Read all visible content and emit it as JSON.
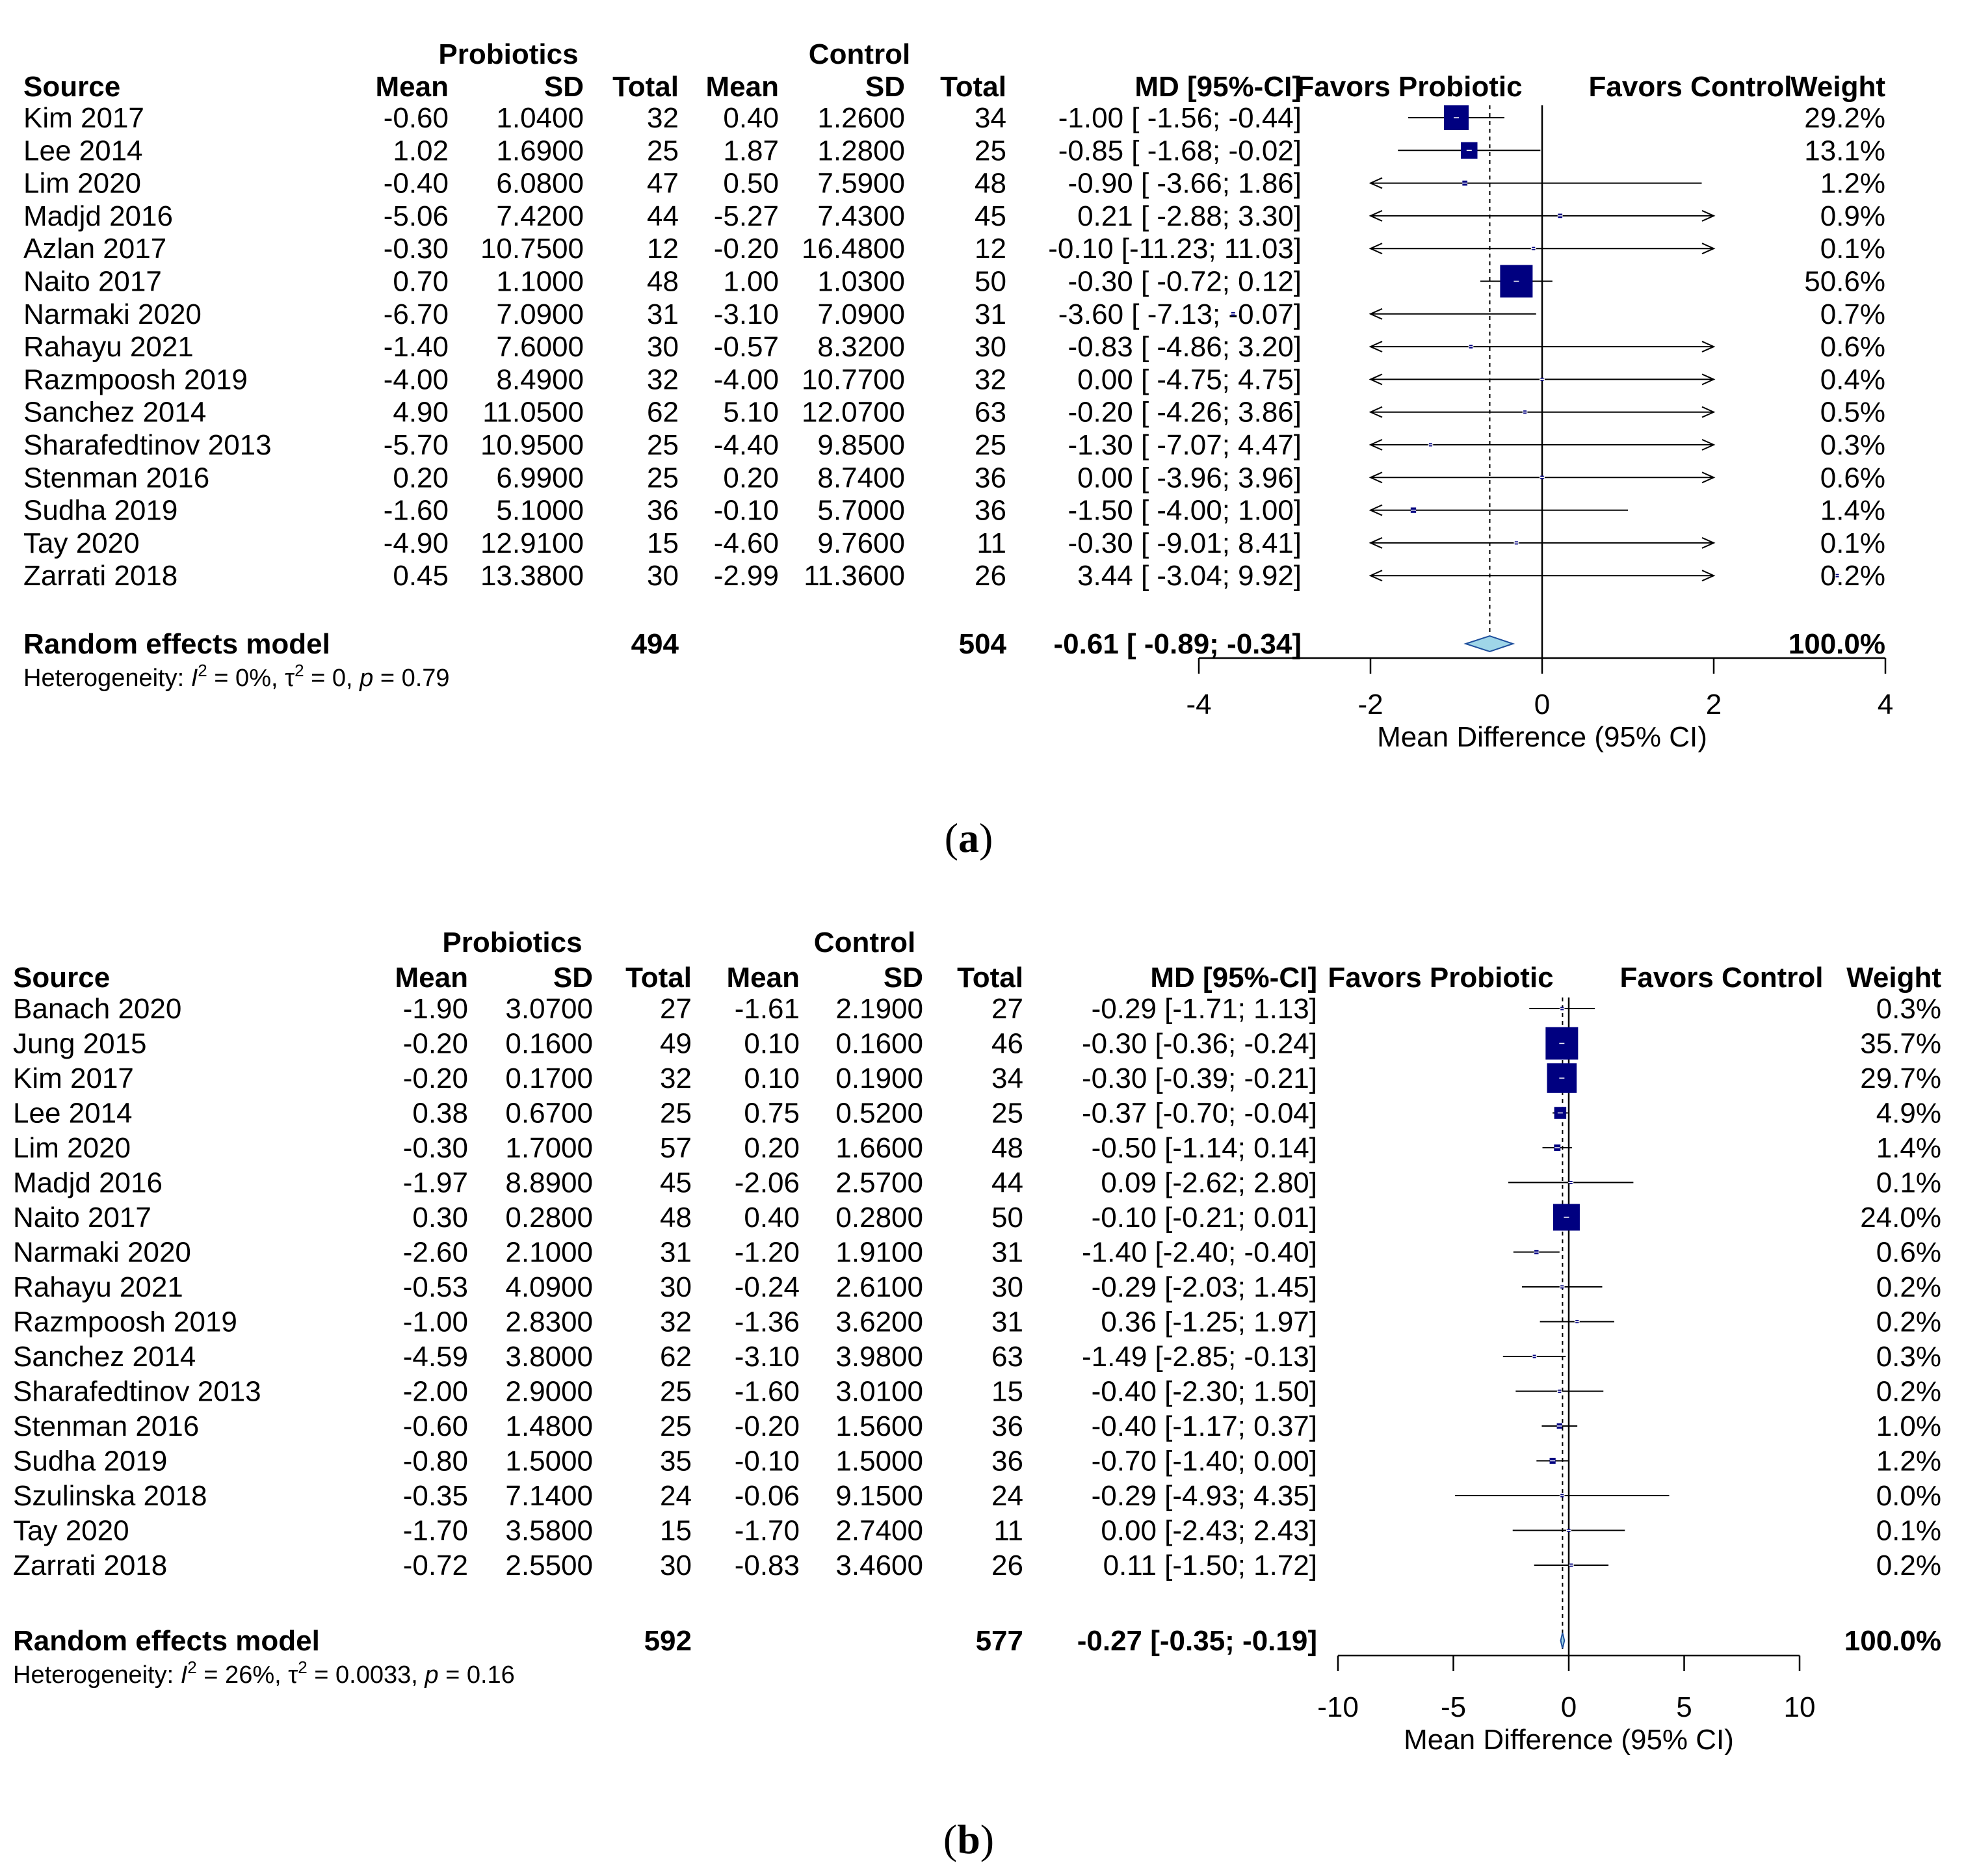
{
  "chart_data": [
    {
      "type": "forest",
      "panel_label": "a",
      "headers": {
        "group1": "Probiotics",
        "group2": "Control",
        "source": "Source",
        "mean": "Mean",
        "sd": "SD",
        "total": "Total",
        "md": "MD [95%-CI]",
        "favors_left": "Favors Probiotic",
        "favors_right": "Favors Control",
        "weight": "Weight"
      },
      "rows": [
        {
          "source": "Kim 2017",
          "mean1": "-0.60",
          "sd1": "1.0400",
          "n1": "32",
          "mean2": "0.40",
          "sd2": "1.2600",
          "n2": "34",
          "md_ci": "-1.00 [ -1.56; -0.44]",
          "weight": "29.2%",
          "md": -1.0,
          "lower": -1.56,
          "upper": -0.44,
          "w": 29.2
        },
        {
          "source": "Lee 2014",
          "mean1": "1.02",
          "sd1": "1.6900",
          "n1": "25",
          "mean2": "1.87",
          "sd2": "1.2800",
          "n2": "25",
          "md_ci": "-0.85 [ -1.68; -0.02]",
          "weight": "13.1%",
          "md": -0.85,
          "lower": -1.68,
          "upper": -0.02,
          "w": 13.1
        },
        {
          "source": "Lim 2020",
          "mean1": "-0.40",
          "sd1": "6.0800",
          "n1": "47",
          "mean2": "0.50",
          "sd2": "7.5900",
          "n2": "48",
          "md_ci": "-0.90 [ -3.66; 1.86]",
          "weight": "1.2%",
          "md": -0.9,
          "lower": -3.66,
          "upper": 1.86,
          "w": 1.2
        },
        {
          "source": "Madjd 2016",
          "mean1": "-5.06",
          "sd1": "7.4200",
          "n1": "44",
          "mean2": "-5.27",
          "sd2": "7.4300",
          "n2": "45",
          "md_ci": "0.21 [ -2.88; 3.30]",
          "weight": "0.9%",
          "md": 0.21,
          "lower": -2.88,
          "upper": 3.3,
          "w": 0.9
        },
        {
          "source": "Azlan 2017",
          "mean1": "-0.30",
          "sd1": "10.7500",
          "n1": "12",
          "mean2": "-0.20",
          "sd2": "16.4800",
          "n2": "12",
          "md_ci": "-0.10 [-11.23; 11.03]",
          "weight": "0.1%",
          "md": -0.1,
          "lower": -11.23,
          "upper": 11.03,
          "w": 0.1
        },
        {
          "source": "Naito 2017",
          "mean1": "0.70",
          "sd1": "1.1000",
          "n1": "48",
          "mean2": "1.00",
          "sd2": "1.0300",
          "n2": "50",
          "md_ci": "-0.30 [ -0.72; 0.12]",
          "weight": "50.6%",
          "md": -0.3,
          "lower": -0.72,
          "upper": 0.12,
          "w": 50.6
        },
        {
          "source": "Narmaki 2020",
          "mean1": "-6.70",
          "sd1": "7.0900",
          "n1": "31",
          "mean2": "-3.10",
          "sd2": "7.0900",
          "n2": "31",
          "md_ci": "-3.60 [ -7.13; -0.07]",
          "weight": "0.7%",
          "md": -3.6,
          "lower": -7.13,
          "upper": -0.07,
          "w": 0.7
        },
        {
          "source": "Rahayu 2021",
          "mean1": "-1.40",
          "sd1": "7.6000",
          "n1": "30",
          "mean2": "-0.57",
          "sd2": "8.3200",
          "n2": "30",
          "md_ci": "-0.83 [ -4.86; 3.20]",
          "weight": "0.6%",
          "md": -0.83,
          "lower": -4.86,
          "upper": 3.2,
          "w": 0.6
        },
        {
          "source": "Razmpoosh 2019",
          "mean1": "-4.00",
          "sd1": "8.4900",
          "n1": "32",
          "mean2": "-4.00",
          "sd2": "10.7700",
          "n2": "32",
          "md_ci": "0.00 [ -4.75; 4.75]",
          "weight": "0.4%",
          "md": 0.0,
          "lower": -4.75,
          "upper": 4.75,
          "w": 0.4
        },
        {
          "source": "Sanchez 2014",
          "mean1": "4.90",
          "sd1": "11.0500",
          "n1": "62",
          "mean2": "5.10",
          "sd2": "12.0700",
          "n2": "63",
          "md_ci": "-0.20 [ -4.26; 3.86]",
          "weight": "0.5%",
          "md": -0.2,
          "lower": -4.26,
          "upper": 3.86,
          "w": 0.5
        },
        {
          "source": "Sharafedtinov 2013",
          "mean1": "-5.70",
          "sd1": "10.9500",
          "n1": "25",
          "mean2": "-4.40",
          "sd2": "9.8500",
          "n2": "25",
          "md_ci": "-1.30 [ -7.07; 4.47]",
          "weight": "0.3%",
          "md": -1.3,
          "lower": -7.07,
          "upper": 4.47,
          "w": 0.3
        },
        {
          "source": "Stenman 2016",
          "mean1": "0.20",
          "sd1": "6.9900",
          "n1": "25",
          "mean2": "0.20",
          "sd2": "8.7400",
          "n2": "36",
          "md_ci": "0.00 [ -3.96; 3.96]",
          "weight": "0.6%",
          "md": 0.0,
          "lower": -3.96,
          "upper": 3.96,
          "w": 0.6
        },
        {
          "source": "Sudha 2019",
          "mean1": "-1.60",
          "sd1": "5.1000",
          "n1": "36",
          "mean2": "-0.10",
          "sd2": "5.7000",
          "n2": "36",
          "md_ci": "-1.50 [ -4.00; 1.00]",
          "weight": "1.4%",
          "md": -1.5,
          "lower": -4.0,
          "upper": 1.0,
          "w": 1.4
        },
        {
          "source": "Tay  2020",
          "mean1": "-4.90",
          "sd1": "12.9100",
          "n1": "15",
          "mean2": "-4.60",
          "sd2": "9.7600",
          "n2": "11",
          "md_ci": "-0.30 [ -9.01; 8.41]",
          "weight": "0.1%",
          "md": -0.3,
          "lower": -9.01,
          "upper": 8.41,
          "w": 0.1
        },
        {
          "source": "Zarrati 2018",
          "mean1": "0.45",
          "sd1": "13.3800",
          "n1": "30",
          "mean2": "-2.99",
          "sd2": "11.3600",
          "n2": "26",
          "md_ci": "3.44 [ -3.04; 9.92]",
          "weight": "0.2%",
          "md": 3.44,
          "lower": -3.04,
          "upper": 9.92,
          "w": 0.2
        }
      ],
      "summary": {
        "label": "Random effects model",
        "n1": "494",
        "n2": "504",
        "md_ci": "-0.61 [ -0.89; -0.34]",
        "weight": "100.0%",
        "md": -0.61,
        "lower": -0.89,
        "upper": -0.34
      },
      "heterogeneity": {
        "prefix": "Heterogeneity: ",
        "i2_sym": "I",
        "i2_val": " = 0%, ",
        "tau_sym": "τ",
        "tau_val": " = 0, ",
        "p_sym": "p",
        "p_val": " = 0.79"
      },
      "axis": {
        "min": -4,
        "max": 4,
        "ticks": [
          -4,
          -2,
          0,
          2,
          4
        ],
        "tick_labels": [
          "-4",
          "-2",
          "0",
          "2",
          "4"
        ],
        "label": "Mean Difference (95% CI)"
      }
    },
    {
      "type": "forest",
      "panel_label": "b",
      "headers": {
        "group1": "Probiotics",
        "group2": "Control",
        "source": "Source",
        "mean": "Mean",
        "sd": "SD",
        "total": "Total",
        "md": "MD [95%-CI]",
        "favors_left": "Favors Probiotic",
        "favors_right": "Favors Control",
        "weight": "Weight"
      },
      "rows": [
        {
          "source": "Banach 2020",
          "mean1": "-1.90",
          "sd1": "3.0700",
          "n1": "27",
          "mean2": "-1.61",
          "sd2": "2.1900",
          "n2": "27",
          "md_ci": "-0.29 [-1.71; 1.13]",
          "weight": "0.3%",
          "md": -0.29,
          "lower": -1.71,
          "upper": 1.13,
          "w": 0.3
        },
        {
          "source": "Jung 2015",
          "mean1": "-0.20",
          "sd1": "0.1600",
          "n1": "49",
          "mean2": "0.10",
          "sd2": "0.1600",
          "n2": "46",
          "md_ci": "-0.30 [-0.36; -0.24]",
          "weight": "35.7%",
          "md": -0.3,
          "lower": -0.36,
          "upper": -0.24,
          "w": 35.7
        },
        {
          "source": "Kim 2017",
          "mean1": "-0.20",
          "sd1": "0.1700",
          "n1": "32",
          "mean2": "0.10",
          "sd2": "0.1900",
          "n2": "34",
          "md_ci": "-0.30 [-0.39; -0.21]",
          "weight": "29.7%",
          "md": -0.3,
          "lower": -0.39,
          "upper": -0.21,
          "w": 29.7
        },
        {
          "source": "Lee 2014",
          "mean1": "0.38",
          "sd1": "0.6700",
          "n1": "25",
          "mean2": "0.75",
          "sd2": "0.5200",
          "n2": "25",
          "md_ci": "-0.37 [-0.70; -0.04]",
          "weight": "4.9%",
          "md": -0.37,
          "lower": -0.7,
          "upper": -0.04,
          "w": 4.9
        },
        {
          "source": "Lim 2020",
          "mean1": "-0.30",
          "sd1": "1.7000",
          "n1": "57",
          "mean2": "0.20",
          "sd2": "1.6600",
          "n2": "48",
          "md_ci": "-0.50 [-1.14; 0.14]",
          "weight": "1.4%",
          "md": -0.5,
          "lower": -1.14,
          "upper": 0.14,
          "w": 1.4
        },
        {
          "source": "Madjd 2016",
          "mean1": "-1.97",
          "sd1": "8.8900",
          "n1": "45",
          "mean2": "-2.06",
          "sd2": "2.5700",
          "n2": "44",
          "md_ci": "0.09 [-2.62; 2.80]",
          "weight": "0.1%",
          "md": 0.09,
          "lower": -2.62,
          "upper": 2.8,
          "w": 0.1
        },
        {
          "source": "Naito 2017",
          "mean1": "0.30",
          "sd1": "0.2800",
          "n1": "48",
          "mean2": "0.40",
          "sd2": "0.2800",
          "n2": "50",
          "md_ci": "-0.10 [-0.21; 0.01]",
          "weight": "24.0%",
          "md": -0.1,
          "lower": -0.21,
          "upper": 0.01,
          "w": 24.0
        },
        {
          "source": "Narmaki 2020",
          "mean1": "-2.60",
          "sd1": "2.1000",
          "n1": "31",
          "mean2": "-1.20",
          "sd2": "1.9100",
          "n2": "31",
          "md_ci": "-1.40 [-2.40; -0.40]",
          "weight": "0.6%",
          "md": -1.4,
          "lower": -2.4,
          "upper": -0.4,
          "w": 0.6
        },
        {
          "source": "Rahayu 2021",
          "mean1": "-0.53",
          "sd1": "4.0900",
          "n1": "30",
          "mean2": "-0.24",
          "sd2": "2.6100",
          "n2": "30",
          "md_ci": "-0.29 [-2.03; 1.45]",
          "weight": "0.2%",
          "md": -0.29,
          "lower": -2.03,
          "upper": 1.45,
          "w": 0.2
        },
        {
          "source": "Razmpoosh 2019",
          "mean1": "-1.00",
          "sd1": "2.8300",
          "n1": "32",
          "mean2": "-1.36",
          "sd2": "3.6200",
          "n2": "31",
          "md_ci": "0.36 [-1.25; 1.97]",
          "weight": "0.2%",
          "md": 0.36,
          "lower": -1.25,
          "upper": 1.97,
          "w": 0.2
        },
        {
          "source": "Sanchez 2014",
          "mean1": "-4.59",
          "sd1": "3.8000",
          "n1": "62",
          "mean2": "-3.10",
          "sd2": "3.9800",
          "n2": "63",
          "md_ci": "-1.49 [-2.85; -0.13]",
          "weight": "0.3%",
          "md": -1.49,
          "lower": -2.85,
          "upper": -0.13,
          "w": 0.3
        },
        {
          "source": "Sharafedtinov 2013",
          "mean1": "-2.00",
          "sd1": "2.9000",
          "n1": "25",
          "mean2": "-1.60",
          "sd2": "3.0100",
          "n2": "15",
          "md_ci": "-0.40 [-2.30; 1.50]",
          "weight": "0.2%",
          "md": -0.4,
          "lower": -2.3,
          "upper": 1.5,
          "w": 0.2
        },
        {
          "source": "Stenman 2016",
          "mean1": "-0.60",
          "sd1": "1.4800",
          "n1": "25",
          "mean2": "-0.20",
          "sd2": "1.5600",
          "n2": "36",
          "md_ci": "-0.40 [-1.17; 0.37]",
          "weight": "1.0%",
          "md": -0.4,
          "lower": -1.17,
          "upper": 0.37,
          "w": 1.0
        },
        {
          "source": "Sudha 2019",
          "mean1": "-0.80",
          "sd1": "1.5000",
          "n1": "35",
          "mean2": "-0.10",
          "sd2": "1.5000",
          "n2": "36",
          "md_ci": "-0.70 [-1.40; 0.00]",
          "weight": "1.2%",
          "md": -0.7,
          "lower": -1.4,
          "upper": 0.0,
          "w": 1.2
        },
        {
          "source": "Szulinska 2018",
          "mean1": "-0.35",
          "sd1": "7.1400",
          "n1": "24",
          "mean2": "-0.06",
          "sd2": "9.1500",
          "n2": "24",
          "md_ci": "-0.29 [-4.93; 4.35]",
          "weight": "0.0%",
          "md": -0.29,
          "lower": -4.93,
          "upper": 4.35,
          "w": 0.0
        },
        {
          "source": "Tay  2020",
          "mean1": "-1.70",
          "sd1": "3.5800",
          "n1": "15",
          "mean2": "-1.70",
          "sd2": "2.7400",
          "n2": "11",
          "md_ci": "0.00 [-2.43; 2.43]",
          "weight": "0.1%",
          "md": 0.0,
          "lower": -2.43,
          "upper": 2.43,
          "w": 0.1
        },
        {
          "source": "Zarrati 2018",
          "mean1": "-0.72",
          "sd1": "2.5500",
          "n1": "30",
          "mean2": "-0.83",
          "sd2": "3.4600",
          "n2": "26",
          "md_ci": "0.11 [-1.50; 1.72]",
          "weight": "0.2%",
          "md": 0.11,
          "lower": -1.5,
          "upper": 1.72,
          "w": 0.2
        }
      ],
      "summary": {
        "label": "Random effects model",
        "n1": "592",
        "n2": "577",
        "md_ci": "-0.27 [-0.35; -0.19]",
        "weight": "100.0%",
        "md": -0.27,
        "lower": -0.35,
        "upper": -0.19
      },
      "heterogeneity": {
        "prefix": "Heterogeneity: ",
        "i2_sym": "I",
        "i2_val": " = 26%, ",
        "tau_sym": "τ",
        "tau_val": " = 0.0033, ",
        "p_sym": "p",
        "p_val": " = 0.16"
      },
      "axis": {
        "min": -10,
        "max": 10,
        "ticks": [
          -10,
          -5,
          0,
          5,
          10
        ],
        "tick_labels": [
          "-10",
          "-5",
          "0",
          "5",
          "10"
        ],
        "label": "Mean Difference (95% CI)"
      }
    }
  ],
  "colors": {
    "square": "#000080",
    "diamond": "#9fd6e8",
    "diamond_stroke": "#1e4f9c",
    "line": "#000000"
  }
}
